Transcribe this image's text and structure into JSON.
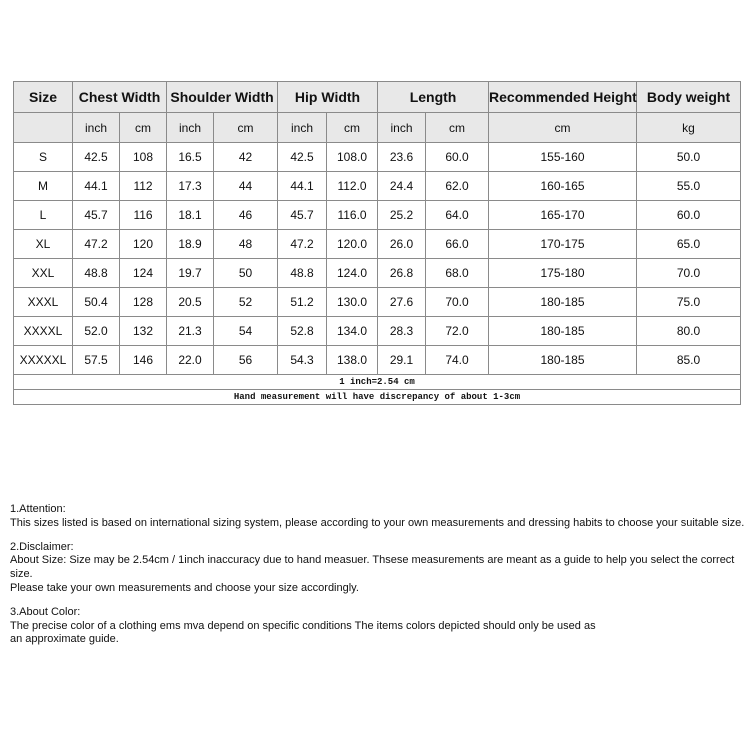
{
  "table": {
    "headers": [
      "Size",
      "Chest Width",
      "Shoulder Width",
      "Hip Width",
      "Length",
      "Recommended Height",
      "Body weight"
    ],
    "units": [
      "",
      "inch",
      "cm",
      "inch",
      "cm",
      "inch",
      "cm",
      "inch",
      "cm",
      "cm",
      "kg"
    ],
    "rows": [
      [
        "S",
        "42.5",
        "108",
        "16.5",
        "42",
        "42.5",
        "108.0",
        "23.6",
        "60.0",
        "155-160",
        "50.0"
      ],
      [
        "M",
        "44.1",
        "112",
        "17.3",
        "44",
        "44.1",
        "112.0",
        "24.4",
        "62.0",
        "160-165",
        "55.0"
      ],
      [
        "L",
        "45.7",
        "116",
        "18.1",
        "46",
        "45.7",
        "116.0",
        "25.2",
        "64.0",
        "165-170",
        "60.0"
      ],
      [
        "XL",
        "47.2",
        "120",
        "18.9",
        "48",
        "47.2",
        "120.0",
        "26.0",
        "66.0",
        "170-175",
        "65.0"
      ],
      [
        "XXL",
        "48.8",
        "124",
        "19.7",
        "50",
        "48.8",
        "124.0",
        "26.8",
        "68.0",
        "175-180",
        "70.0"
      ],
      [
        "XXXL",
        "50.4",
        "128",
        "20.5",
        "52",
        "51.2",
        "130.0",
        "27.6",
        "70.0",
        "180-185",
        "75.0"
      ],
      [
        "XXXXL",
        "52.0",
        "132",
        "21.3",
        "54",
        "52.8",
        "134.0",
        "28.3",
        "72.0",
        "180-185",
        "80.0"
      ],
      [
        "XXXXXL",
        "57.5",
        "146",
        "22.0",
        "56",
        "54.3",
        "138.0",
        "29.1",
        "74.0",
        "180-185",
        "85.0"
      ]
    ],
    "footnotes": [
      "1 inch=2.54 cm",
      "Hand measurement will have discrepancy of about 1-3cm"
    ]
  },
  "notes": [
    {
      "title": "1.Attention:",
      "lines": [
        "This sizes listed is based on international sizing system, please according to your own measurements and dressing habits to choose your suitable size."
      ]
    },
    {
      "title": "2.Disclaimer:",
      "lines": [
        "About Size: Size may be 2.54cm / 1inch inaccuracy due to hand measuer. Thsese measurements are meant as a guide to help you select the correct size.",
        "Please take your own measurements and choose your size accordingly."
      ]
    },
    {
      "title": "3.About Color:",
      "lines": [
        "The precise color of a clothing ems mva depend on specific conditions The items colors depicted should only be used as",
        "an approximate guide."
      ]
    }
  ]
}
